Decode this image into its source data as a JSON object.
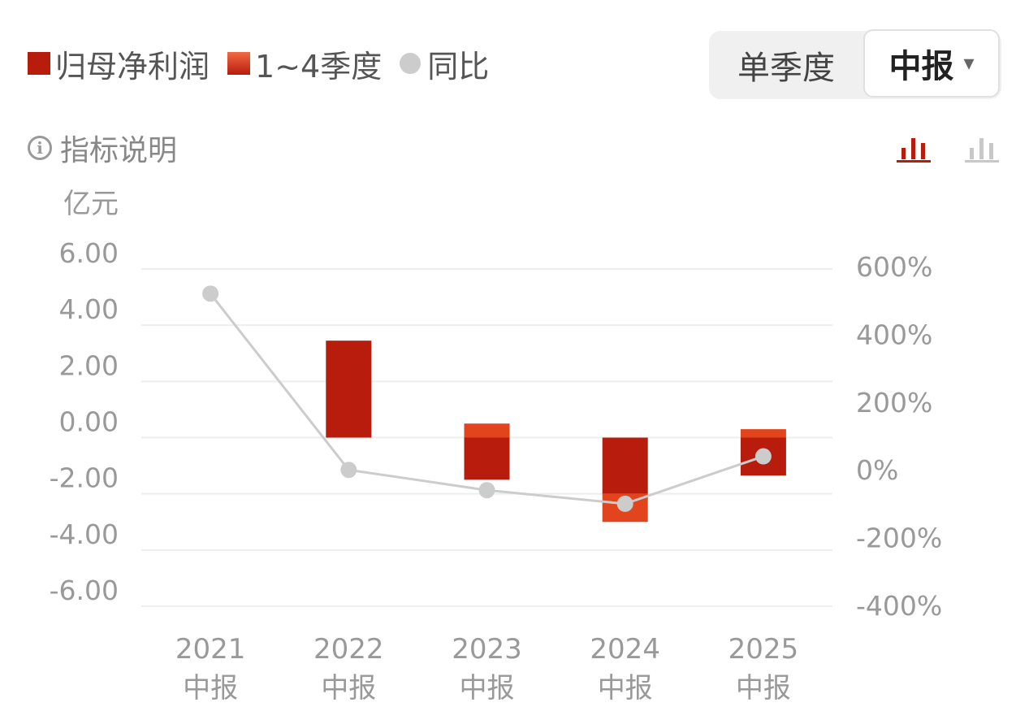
{
  "legend": {
    "net_profit": "归母净利润",
    "quarters": "1~4季度",
    "yoy": "同比"
  },
  "period_toggle": {
    "option_single": "单季度",
    "option_selected": "中报",
    "caret": "▾"
  },
  "info_label": "指标说明",
  "colors": {
    "accent": "#B71C0C",
    "accent_light": "#E2451D",
    "line": "#cccccc",
    "grid": "#eeeeee"
  },
  "chart_data": {
    "type": "bar",
    "categories": [
      "2021",
      "2022",
      "2023",
      "2024",
      "2025"
    ],
    "category_sublabel": "中报",
    "left_unit": "亿元",
    "y_ticks": [
      "6.00",
      "4.00",
      "2.00",
      "0.00",
      "-2.00",
      "-4.00",
      "-6.00"
    ],
    "ylim": [
      -6,
      6
    ],
    "right_ticks": [
      "600%",
      "400%",
      "200%",
      "0%",
      "-200%",
      "-400%"
    ],
    "y2lim": [
      -400,
      600
    ],
    "series": [
      {
        "name": "归母净利润",
        "values": [
          null,
          3.45,
          -1.5,
          -2.0,
          -1.35
        ]
      },
      {
        "name": "1~4季度",
        "values": [
          null,
          0,
          0.5,
          -1.0,
          0.3
        ]
      },
      {
        "name": "同比",
        "axis": "right",
        "values": [
          520,
          0,
          -60,
          -100,
          40
        ]
      }
    ],
    "grid": true
  }
}
